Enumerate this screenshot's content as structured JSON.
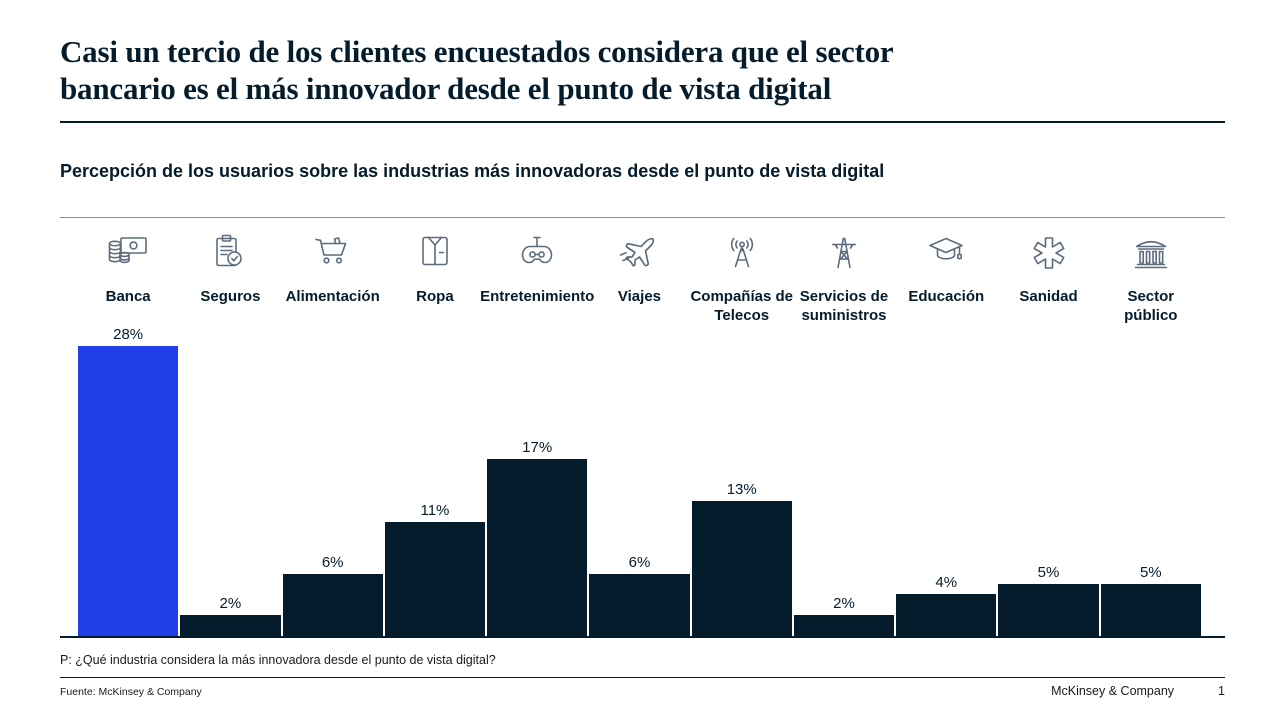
{
  "header": {
    "title_line1": "Casi un tercio de los clientes encuestados considera que el sector",
    "title_line2": "bancario es el más innovador desde el punto de vista digital",
    "subtitle": "Percepción de los usuarios sobre las industrias más innovadoras desde el punto de vista digital"
  },
  "chart_data": {
    "type": "bar",
    "title": "Percepción de los usuarios sobre las industrias más innovadoras desde el punto de vista digital",
    "categories": [
      "Banca",
      "Seguros",
      "Alimentación",
      "Ropa",
      "Entretenimiento",
      "Viajes",
      "Compañías de Telecos",
      "Servicios de suministros",
      "Educación",
      "Sanidad",
      "Sector público"
    ],
    "values": [
      28,
      2,
      6,
      11,
      17,
      6,
      13,
      2,
      4,
      5,
      5
    ],
    "value_labels": [
      "28%",
      "2%",
      "6%",
      "11%",
      "17%",
      "6%",
      "13%",
      "2%",
      "4%",
      "5%",
      "5%"
    ],
    "unit": "%",
    "ylim": [
      0,
      30
    ],
    "grid": false,
    "legend": false,
    "bar_color": "#051C2C",
    "highlight_category": "Banca",
    "highlight_color": "#2240E8"
  },
  "columns": [
    {
      "icon": "coins-banknote-icon",
      "label_lines": [
        "Banca"
      ]
    },
    {
      "icon": "clipboard-check-icon",
      "label_lines": [
        "Seguros"
      ]
    },
    {
      "icon": "shopping-cart-icon",
      "label_lines": [
        "Alimentación"
      ]
    },
    {
      "icon": "shirt-icon",
      "label_lines": [
        "Ropa"
      ]
    },
    {
      "icon": "gamepad-icon",
      "label_lines": [
        "Entretenimiento"
      ]
    },
    {
      "icon": "airplane-icon",
      "label_lines": [
        "Viajes"
      ]
    },
    {
      "icon": "antenna-icon",
      "label_lines": [
        "Compañías de",
        "Telecos"
      ]
    },
    {
      "icon": "power-tower-icon",
      "label_lines": [
        "Servicios de",
        "suministros"
      ]
    },
    {
      "icon": "graduation-cap-icon",
      "label_lines": [
        "Educación"
      ]
    },
    {
      "icon": "medical-asterisk-icon",
      "label_lines": [
        "Sanidad"
      ]
    },
    {
      "icon": "bank-building-icon",
      "label_lines": [
        "Sector",
        "público"
      ]
    }
  ],
  "footer": {
    "question": "P: ¿Qué industria considera la más innovadora desde el punto de vista digital?",
    "source": "Fuente: McKinsey & Company",
    "brand": "McKinsey & Company",
    "page_number": "1"
  },
  "colors": {
    "text": "#051C2C",
    "icon_stroke": "#5C6C7C",
    "divider_dark": "#051C2C",
    "divider_gray": "#8C8C8C"
  }
}
